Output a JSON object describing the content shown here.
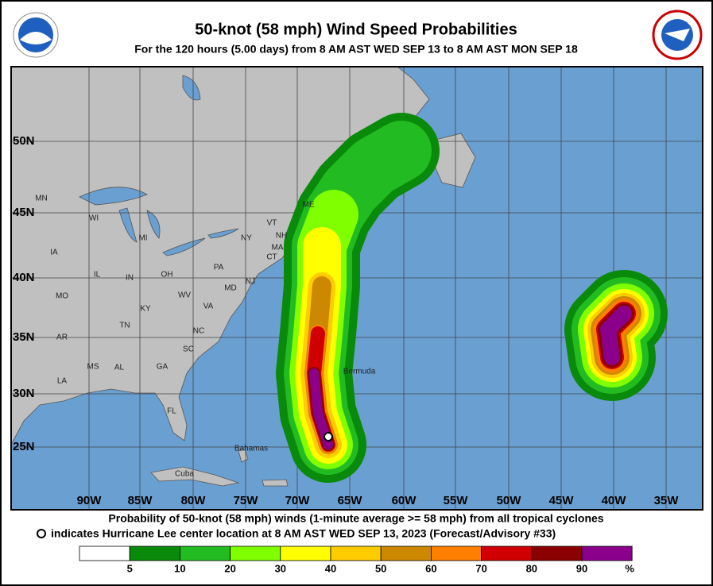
{
  "header": {
    "title": "50-knot (58 mph) Wind Speed Probabilities",
    "subtitle": "For the 120 hours (5.00 days) from 8 AM AST WED SEP 13 to 8 AM AST MON SEP 18"
  },
  "map": {
    "latitude_labels": [
      "50N",
      "45N",
      "40N",
      "35N",
      "30N",
      "25N"
    ],
    "longitude_labels": [
      "90W",
      "85W",
      "80W",
      "75W",
      "70W",
      "65W",
      "60W",
      "55W",
      "50W",
      "45W",
      "40W",
      "35W"
    ],
    "state_labels": [
      "MN",
      "WI",
      "MI",
      "IA",
      "IL",
      "IN",
      "OH",
      "PA",
      "NY",
      "VT",
      "NH",
      "MA",
      "CT",
      "ME",
      "MO",
      "KY",
      "WV",
      "VA",
      "MD",
      "NJ",
      "TN",
      "NC",
      "AR",
      "SC",
      "MS",
      "AL",
      "GA",
      "LA",
      "FL"
    ],
    "place_labels": [
      "Bermuda",
      "Bahamas",
      "Cuba"
    ]
  },
  "footer": {
    "line1": "Probability of 50-knot (58 mph) winds (1-minute average >= 58 mph) from all tropical cyclones",
    "line2": "indicates Hurricane Lee center location at 8 AM AST WED SEP 13, 2023 (Forecast/Advisory #33)"
  },
  "legend": {
    "colors": [
      "#ffffff",
      "#0a8a0a",
      "#22bb22",
      "#80ff00",
      "#ffff00",
      "#ffcc00",
      "#cc8800",
      "#ff8000",
      "#d00000",
      "#8b0000",
      "#8b008b"
    ],
    "ticks": [
      5,
      10,
      20,
      30,
      40,
      50,
      60,
      70,
      80,
      90
    ],
    "unit": "%"
  }
}
